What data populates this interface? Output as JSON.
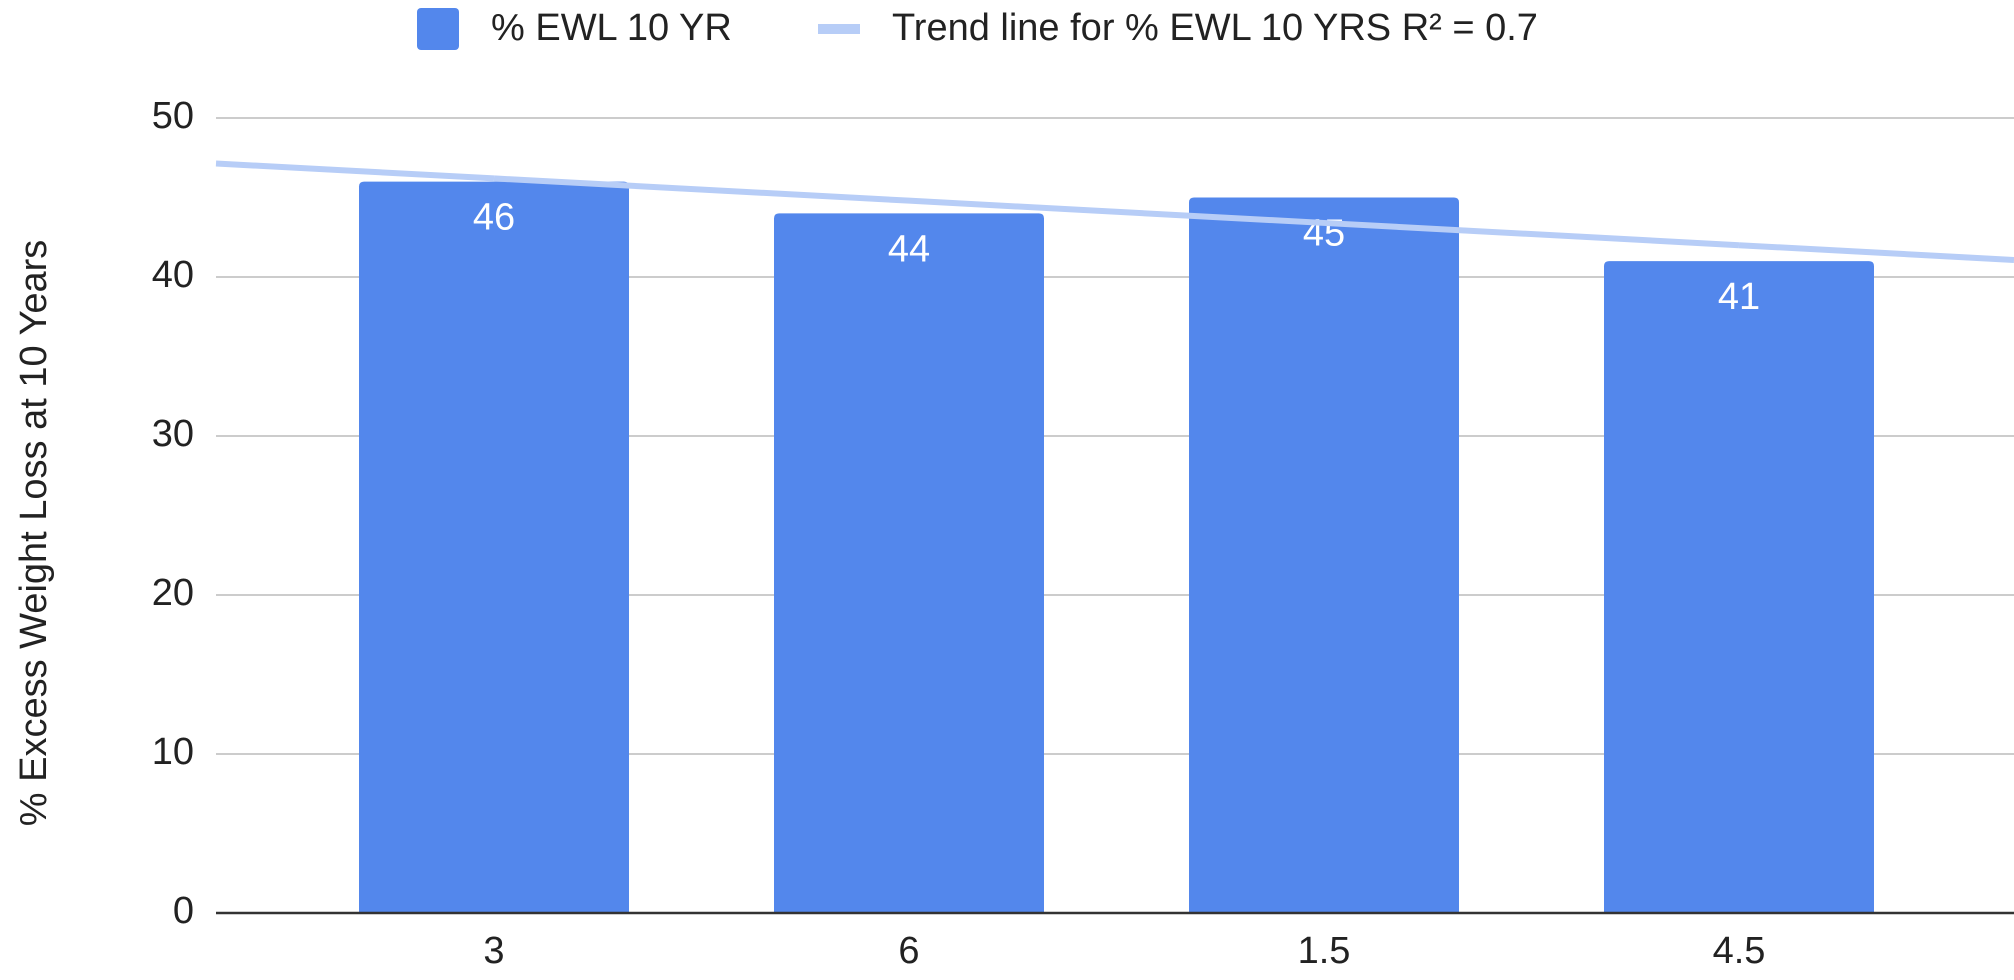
{
  "chart_data": {
    "type": "bar",
    "y_label": "% Excess Weight Loss at 10 Years",
    "categories": [
      "3",
      "6",
      "1.5",
      "4.5"
    ],
    "series": [
      {
        "name": "% EWL 10 YR",
        "color": "#5387ec",
        "values": [
          46,
          44,
          45,
          41
        ]
      },
      {
        "name": "Trend line for % EWL 10 YRS R² = 0.7",
        "color": "#b7cdf7",
        "values": [
          46.2,
          44.8,
          43.4,
          42.0
        ],
        "type": "line"
      }
    ],
    "ylim": [
      0,
      50
    ],
    "yticks": [
      0,
      10,
      20,
      30,
      40,
      50
    ],
    "grid": true,
    "legend": "top"
  }
}
